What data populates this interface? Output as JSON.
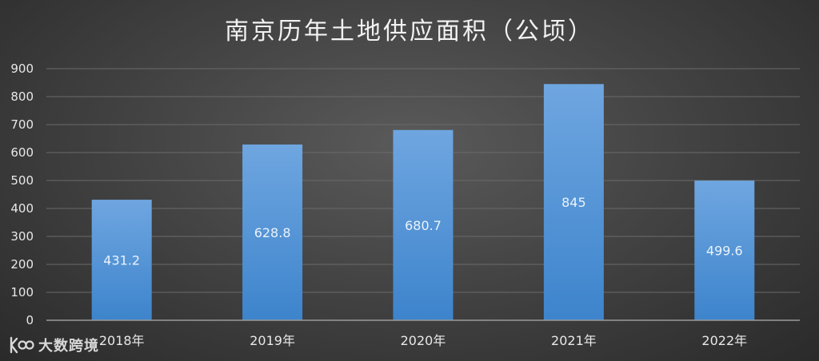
{
  "watermark": {
    "brand": "大数跨境",
    "logo_icon": "k100-logo-icon"
  },
  "colors": {
    "bar_top": "#6fa6e0",
    "bar_bottom": "#3d84cc",
    "grid": "#6a6a6a",
    "axis": "#9a9a9a"
  },
  "chart_data": {
    "type": "bar",
    "title": "南京历年土地供应面积（公顷）",
    "xlabel": "",
    "ylabel": "",
    "categories": [
      "2018年",
      "2019年",
      "2020年",
      "2021年",
      "2022年"
    ],
    "values": [
      431.2,
      628.8,
      680.7,
      845,
      499.6
    ],
    "value_labels": [
      "431.2",
      "628.8",
      "680.7",
      "845",
      "499.6"
    ],
    "ylim": [
      0,
      900
    ],
    "yticks": [
      0,
      100,
      200,
      300,
      400,
      500,
      600,
      700,
      800,
      900
    ],
    "grid": true,
    "legend": "none"
  }
}
